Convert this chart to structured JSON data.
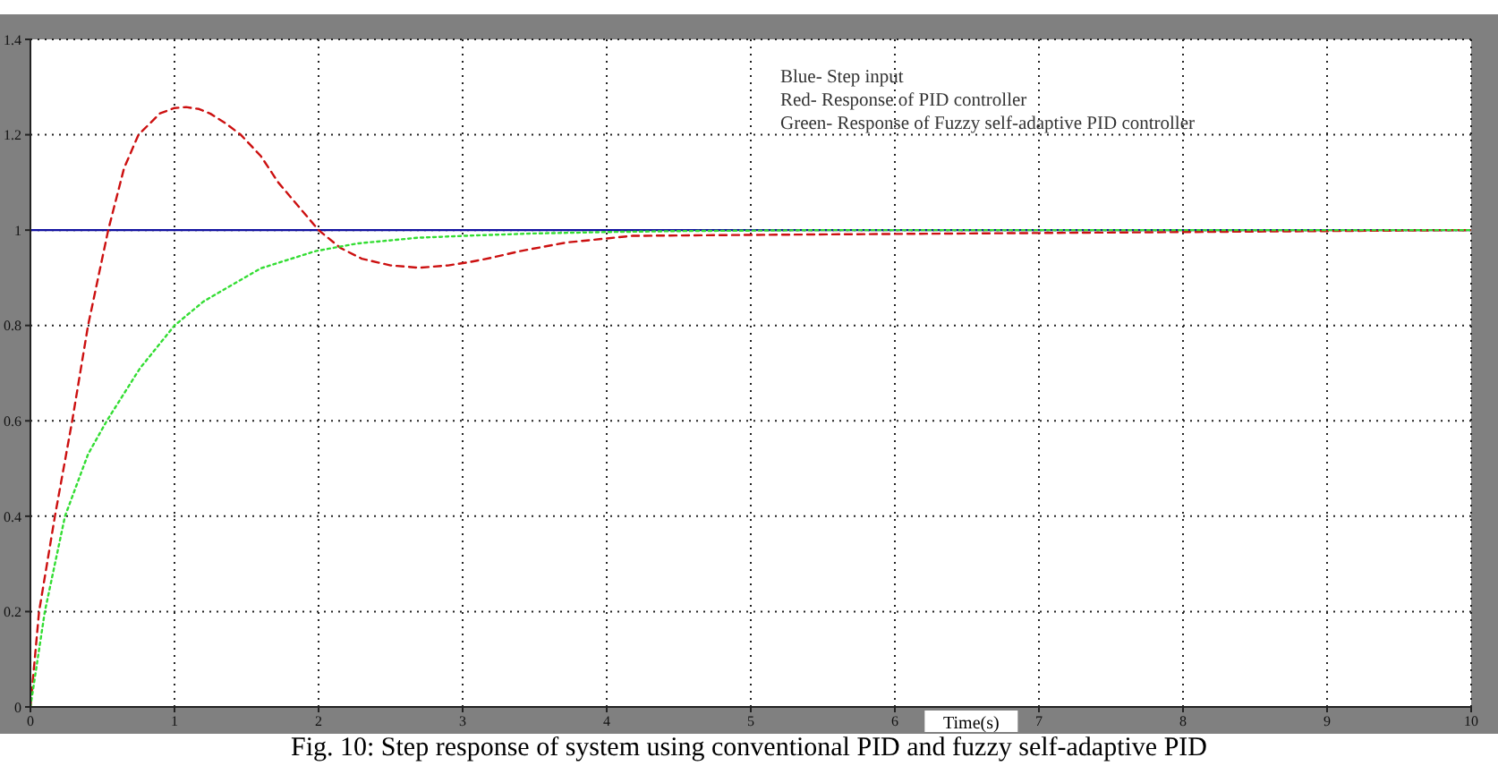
{
  "chart_data": {
    "type": "line",
    "xlabel": "Time(s)",
    "annotations": [
      "Blue- Step input",
      "Red- Response of PID controller",
      "Green- Response of Fuzzy self-adaptive PID controller",
      "Fig. 10: Step response of system using conventional PID and fuzzy self-adaptive PID"
    ],
    "xlim": [
      0,
      10
    ],
    "xticks": [
      0,
      1,
      2,
      3,
      4,
      5,
      6,
      7,
      8,
      9,
      10
    ],
    "ylim": [
      0,
      1.4
    ],
    "yticks": [
      0,
      0.2,
      0.4,
      0.6,
      0.8,
      1,
      1.2,
      1.4
    ],
    "grid": true,
    "series": [
      {
        "color": "#1010a0",
        "line_style": "solid",
        "x": [
          0,
          10
        ],
        "values": [
          1,
          1
        ]
      },
      {
        "color": "#cc1010",
        "line_style": "dashed",
        "x": [
          0,
          0.06,
          0.17,
          0.29,
          0.4,
          0.54,
          0.65,
          0.75,
          0.9,
          1.0,
          1.08,
          1.17,
          1.25,
          1.35,
          1.46,
          1.6,
          1.72,
          1.86,
          2.0,
          2.15,
          2.3,
          2.5,
          2.7,
          2.9,
          3.05,
          3.2,
          3.4,
          3.72,
          4.18,
          5,
          6,
          7,
          8,
          9,
          10
        ],
        "values": [
          0,
          0.2,
          0.4,
          0.6,
          0.8,
          1.0,
          1.13,
          1.2,
          1.245,
          1.256,
          1.258,
          1.254,
          1.244,
          1.225,
          1.2,
          1.155,
          1.1,
          1.05,
          1.0,
          0.963,
          0.94,
          0.926,
          0.921,
          0.926,
          0.933,
          0.942,
          0.956,
          0.974,
          0.988,
          0.99,
          0.992,
          0.994,
          0.996,
          0.998,
          1.0
        ]
      },
      {
        "color": "#33dd33",
        "line_style": "dotted",
        "x": [
          0,
          0.1,
          0.24,
          0.4,
          0.53,
          0.76,
          1.0,
          1.2,
          1.37,
          1.6,
          1.98,
          2.27,
          2.69,
          3.1,
          3.5,
          4.0,
          4.5,
          5.0,
          5.5,
          10
        ],
        "values": [
          0,
          0.2,
          0.4,
          0.53,
          0.6,
          0.71,
          0.8,
          0.85,
          0.88,
          0.92,
          0.956,
          0.972,
          0.984,
          0.989,
          0.993,
          0.996,
          0.998,
          0.999,
          1.0,
          1.0
        ]
      }
    ]
  }
}
